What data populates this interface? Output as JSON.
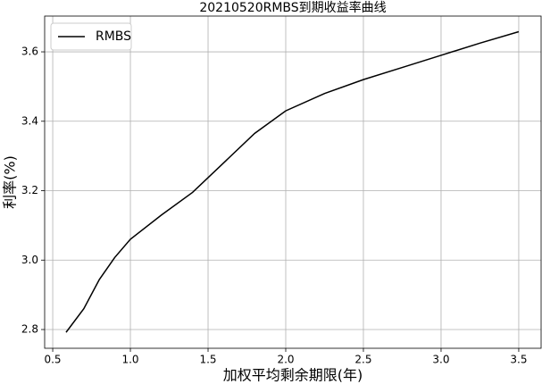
{
  "chart_data": {
    "type": "line",
    "title": "20210520RMBS到期收益率曲线",
    "x_label": "加权平均剩余期限(年)",
    "y_label": "利率(%)",
    "x": [
      0.586,
      0.7,
      0.8,
      0.9,
      1.0,
      1.2,
      1.4,
      1.6,
      1.8,
      2.0,
      2.25,
      2.5,
      2.75,
      3.0,
      3.25,
      3.5
    ],
    "series": [
      {
        "name": "RMBS",
        "color": "#000000",
        "values": [
          2.792,
          2.86,
          2.944,
          3.008,
          3.06,
          3.13,
          3.195,
          3.28,
          3.365,
          3.43,
          3.48,
          3.52,
          3.555,
          3.59,
          3.625,
          3.658
        ]
      }
    ],
    "xlim": [
      0.448,
      3.644
    ],
    "ylim": [
      2.746,
      3.703
    ],
    "xticks": [
      {
        "value": 0.5,
        "label": "0.5"
      },
      {
        "value": 1.0,
        "label": "1.0"
      },
      {
        "value": 1.5,
        "label": "1.5"
      },
      {
        "value": 2.0,
        "label": "2.0"
      },
      {
        "value": 2.5,
        "label": "2.5"
      },
      {
        "value": 3.0,
        "label": "3.0"
      },
      {
        "value": 3.5,
        "label": "3.5"
      }
    ],
    "yticks": [
      2.8,
      {
        "value": 3.0,
        "label": "3.0"
      },
      3.2,
      3.4,
      3.6
    ],
    "grid": true,
    "legend": "upper-left"
  }
}
